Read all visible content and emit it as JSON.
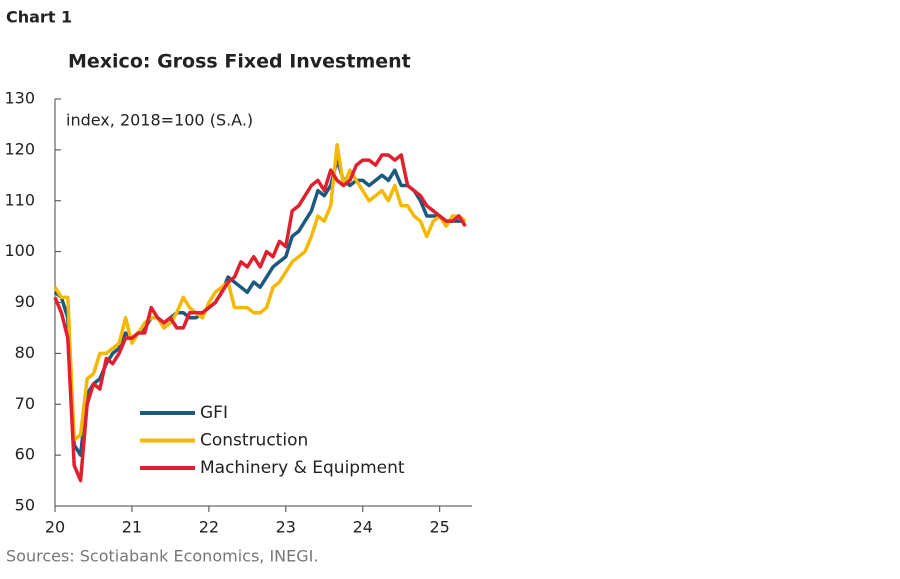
{
  "chart_data": {
    "type": "line",
    "label": "Chart 1",
    "title": "Mexico: Gross Fixed Investment",
    "annotation": "index, 2018=100 (S.A.)",
    "source": "Sources: Scotiabank Economics, INEGI.",
    "x": [
      20,
      20.083,
      20.167,
      20.25,
      20.333,
      20.417,
      20.5,
      20.583,
      20.667,
      20.75,
      20.833,
      20.917,
      21,
      21.083,
      21.167,
      21.25,
      21.333,
      21.417,
      21.5,
      21.583,
      21.667,
      21.75,
      21.833,
      21.917,
      22,
      22.083,
      22.167,
      22.25,
      22.333,
      22.417,
      22.5,
      22.583,
      22.667,
      22.75,
      22.833,
      22.917,
      23,
      23.083,
      23.167,
      23.25,
      23.333,
      23.417,
      23.5,
      23.583,
      23.667,
      23.75,
      23.833,
      23.917,
      24,
      24.083,
      24.167,
      24.25,
      24.333,
      24.417,
      24.5,
      24.583,
      24.667,
      24.75,
      24.833,
      24.917,
      25,
      25.083,
      25.167,
      25.25,
      25.333
    ],
    "series": [
      {
        "name": "GFI",
        "color": "#1b5a7e",
        "values": [
          92,
          91,
          87,
          62,
          60,
          72,
          74,
          75,
          78,
          80,
          81,
          84,
          83,
          84,
          85,
          87,
          87,
          86,
          87,
          88,
          88,
          87,
          87,
          88,
          89,
          90,
          92,
          95,
          94,
          93,
          92,
          94,
          93,
          95,
          97,
          98,
          99,
          103,
          104,
          106,
          108,
          112,
          111,
          113,
          118,
          114,
          113,
          114,
          114,
          113,
          114,
          115,
          114,
          116,
          113,
          113,
          112,
          110,
          107,
          107,
          107,
          106,
          106,
          106,
          106
        ]
      },
      {
        "name": "Construction",
        "color": "#f5b800",
        "values": [
          93,
          91,
          91,
          63,
          64,
          75,
          76,
          80,
          80,
          81,
          82,
          87,
          82,
          84,
          86,
          87,
          87,
          85,
          86,
          88,
          91,
          89,
          88,
          87,
          90,
          92,
          93,
          94,
          89,
          89,
          89,
          88,
          88,
          89,
          93,
          94,
          96,
          98,
          99,
          100,
          103,
          107,
          106,
          109,
          121,
          113,
          116,
          114,
          112,
          110,
          111,
          112,
          110,
          113,
          109,
          109,
          107,
          106,
          103,
          106,
          107,
          105,
          107,
          107,
          106
        ]
      },
      {
        "name": "Machinery & Equipment",
        "color": "#e0202e",
        "values": [
          91,
          88,
          83,
          58,
          55,
          70,
          74,
          73,
          79,
          78,
          80,
          83,
          83,
          84,
          84,
          89,
          87,
          86,
          87,
          85,
          85,
          88,
          88,
          88,
          89,
          90,
          92,
          94,
          95,
          98,
          97,
          99,
          97,
          100,
          99,
          102,
          101,
          108,
          109,
          111,
          113,
          114,
          112,
          116,
          114,
          113,
          114,
          117,
          118,
          118,
          117,
          119,
          119,
          118,
          119,
          113,
          112,
          111,
          109,
          108,
          107,
          106,
          106,
          107,
          105
        ]
      }
    ],
    "xlim": [
      20,
      25.42
    ],
    "xticks": [
      20,
      21,
      22,
      23,
      24,
      25
    ],
    "ylim": [
      50,
      130
    ],
    "yticks": [
      50,
      60,
      70,
      80,
      90,
      100,
      110,
      120,
      130
    ],
    "grid": false
  }
}
